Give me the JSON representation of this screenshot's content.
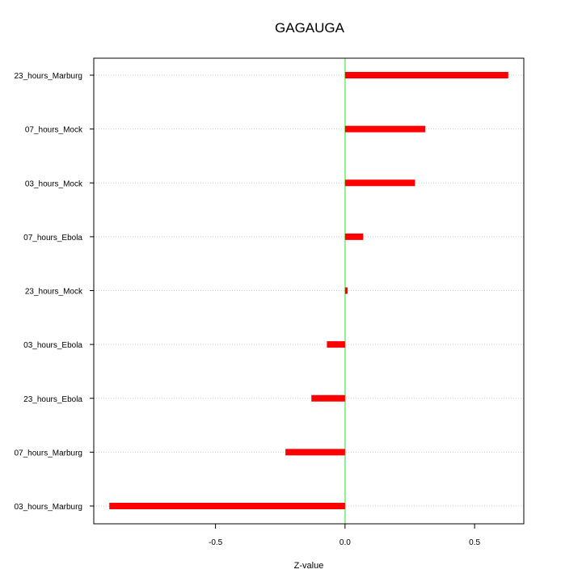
{
  "chart_data": {
    "type": "bar",
    "orientation": "horizontal",
    "title": "GAGAUGA",
    "xlabel": "Z-value",
    "ylabel": "",
    "xlim": [
      -0.97,
      0.69
    ],
    "xticks": [
      -0.5,
      0.0,
      0.5
    ],
    "xtick_labels": [
      "-0.5",
      "0.0",
      "0.5"
    ],
    "grid": "horizontal dotted",
    "reference_line": {
      "x": 0,
      "color": "#90ee90"
    },
    "bar_color": "#ff0000",
    "categories": [
      "23_hours_Marburg",
      "07_hours_Mock",
      "03_hours_Mock",
      "07_hours_Ebola",
      "23_hours_Mock",
      "03_hours_Ebola",
      "23_hours_Ebola",
      "07_hours_Marburg",
      "03_hours_Marburg"
    ],
    "values": [
      0.63,
      0.31,
      0.27,
      0.07,
      0.01,
      -0.07,
      -0.13,
      -0.23,
      -0.91
    ]
  }
}
